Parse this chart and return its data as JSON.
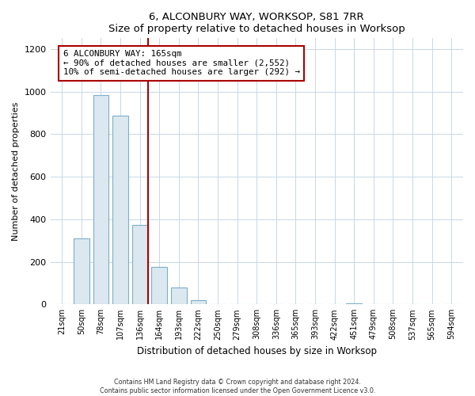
{
  "title": "6, ALCONBURY WAY, WORKSOP, S81 7RR",
  "subtitle": "Size of property relative to detached houses in Worksop",
  "xlabel": "Distribution of detached houses by size in Worksop",
  "ylabel": "Number of detached properties",
  "bar_labels": [
    "21sqm",
    "50sqm",
    "78sqm",
    "107sqm",
    "136sqm",
    "164sqm",
    "193sqm",
    "222sqm",
    "250sqm",
    "279sqm",
    "308sqm",
    "336sqm",
    "365sqm",
    "393sqm",
    "422sqm",
    "451sqm",
    "479sqm",
    "508sqm",
    "537sqm",
    "565sqm",
    "594sqm"
  ],
  "bar_values": [
    0,
    310,
    985,
    885,
    375,
    175,
    80,
    20,
    0,
    0,
    0,
    0,
    0,
    0,
    0,
    5,
    0,
    0,
    0,
    0,
    0
  ],
  "bar_fill_color": "#dce8f0",
  "bar_edge_color": "#7dafc8",
  "ylim": [
    0,
    1250
  ],
  "yticks": [
    0,
    200,
    400,
    600,
    800,
    1000,
    1200
  ],
  "vline_color": "#aa0000",
  "annotation_title": "6 ALCONBURY WAY: 165sqm",
  "annotation_line1": "← 90% of detached houses are smaller (2,552)",
  "annotation_line2": "10% of semi-detached houses are larger (292) →",
  "annotation_box_color": "#ffffff",
  "annotation_box_edgecolor": "#aa0000",
  "footer_line1": "Contains HM Land Registry data © Crown copyright and database right 2024.",
  "footer_line2": "Contains public sector information licensed under the Open Government Licence v3.0.",
  "background_color": "#ffffff",
  "grid_color": "#c8d8e8"
}
